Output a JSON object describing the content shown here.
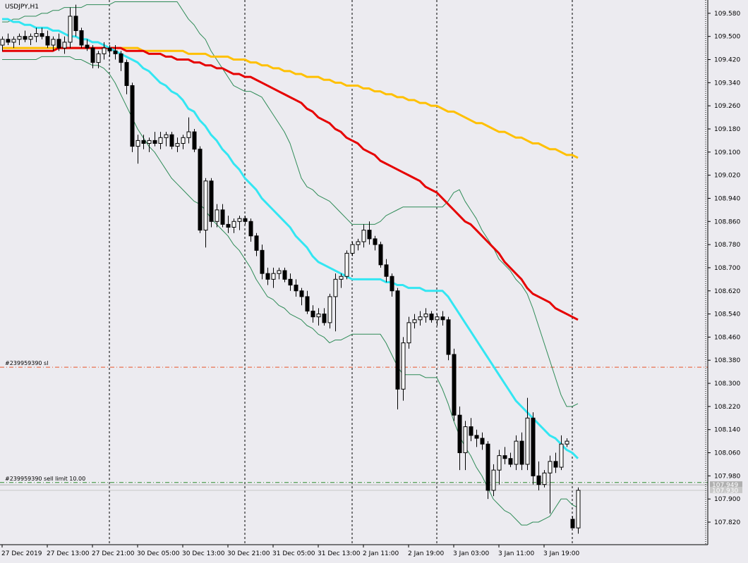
{
  "chart_data": {
    "type": "candlestick",
    "title": "USDJPY,H1",
    "background": "#ecebf0",
    "bull_color": "#ffffff",
    "bear_color": "#000000",
    "ylim": [
      107.742,
      109.626
    ],
    "yticks": [
      {
        "value": 109.58,
        "label": "109.580"
      },
      {
        "value": 109.5,
        "label": "109.500"
      },
      {
        "value": 109.42,
        "label": "109.420"
      },
      {
        "value": 109.34,
        "label": "109.340"
      },
      {
        "value": 109.26,
        "label": "109.260"
      },
      {
        "value": 109.18,
        "label": "109.180"
      },
      {
        "value": 109.1,
        "label": "109.100"
      },
      {
        "value": 109.02,
        "label": "109.020"
      },
      {
        "value": 108.94,
        "label": "108.940"
      },
      {
        "value": 108.86,
        "label": "108.860"
      },
      {
        "value": 108.78,
        "label": "108.780"
      },
      {
        "value": 108.7,
        "label": "108.700"
      },
      {
        "value": 108.62,
        "label": "108.620"
      },
      {
        "value": 108.54,
        "label": "108.540"
      },
      {
        "value": 108.46,
        "label": "108.460"
      },
      {
        "value": 108.38,
        "label": "108.380"
      },
      {
        "value": 108.3,
        "label": "108.300"
      },
      {
        "value": 108.22,
        "label": "108.220"
      },
      {
        "value": 108.14,
        "label": "108.140"
      },
      {
        "value": 108.06,
        "label": "108.060"
      },
      {
        "value": 107.98,
        "label": "107.980"
      },
      {
        "value": 107.9,
        "label": "107.900"
      },
      {
        "value": 107.82,
        "label": "107.820"
      }
    ],
    "categories": [
      "27 Dec 2019",
      null,
      null,
      null,
      null,
      null,
      null,
      null,
      "27 Dec 13:00",
      null,
      null,
      null,
      null,
      null,
      null,
      null,
      "27 Dec 21:00",
      null,
      null,
      null,
      null,
      null,
      null,
      null,
      "30 Dec 05:00",
      null,
      null,
      null,
      null,
      null,
      null,
      null,
      "30 Dec 13:00",
      null,
      null,
      null,
      null,
      null,
      null,
      null,
      "30 Dec 21:00",
      null,
      null,
      null,
      null,
      null,
      null,
      null,
      "31 Dec 05:00",
      null,
      null,
      null,
      null,
      null,
      null,
      null,
      "31 Dec 13:00",
      null,
      null,
      null,
      null,
      null,
      null,
      null,
      "2 Jan 11:00",
      null,
      null,
      null,
      null,
      null,
      null,
      null,
      "2 Jan 19:00",
      null,
      null,
      null,
      null,
      null,
      null,
      null,
      "3 Jan 03:00",
      null,
      null,
      null,
      null,
      null,
      null,
      null,
      "3 Jan 11:00",
      null,
      null,
      null,
      null,
      null,
      null,
      null,
      "3 Jan 19:00",
      null,
      null,
      null,
      null,
      null,
      null
    ],
    "open": [
      109.47,
      109.49,
      109.48,
      109.49,
      109.5,
      109.49,
      109.5,
      109.51,
      109.5,
      109.47,
      109.49,
      109.46,
      109.48,
      109.57,
      109.52,
      109.47,
      109.46,
      109.41,
      109.44,
      109.46,
      109.45,
      109.44,
      109.41,
      109.33,
      109.12,
      109.14,
      109.13,
      109.14,
      109.13,
      109.15,
      109.16,
      109.12,
      109.13,
      109.15,
      109.17,
      109.11,
      108.83,
      109.0,
      108.86,
      108.9,
      108.85,
      108.84,
      108.86,
      108.87,
      108.86,
      108.81,
      108.76,
      108.68,
      108.66,
      108.68,
      108.69,
      108.66,
      108.64,
      108.62,
      108.6,
      108.55,
      108.53,
      108.54,
      108.51,
      108.6,
      108.66,
      108.67,
      108.75,
      108.78,
      108.79,
      108.83,
      108.8,
      108.78,
      108.71,
      108.67,
      108.62,
      108.28,
      108.44,
      108.51,
      108.52,
      108.53,
      108.54,
      108.52,
      108.53,
      108.52,
      108.4,
      108.19,
      108.06,
      108.15,
      108.12,
      108.11,
      108.09,
      107.93,
      108.0,
      108.05,
      108.04,
      108.02,
      108.1,
      108.02,
      108.18,
      107.98,
      107.95,
      107.99,
      108.03,
      108.01,
      108.09,
      107.83,
      107.8
    ],
    "high": [
      109.5,
      109.51,
      109.5,
      109.51,
      109.52,
      109.51,
      109.53,
      109.53,
      109.52,
      109.5,
      109.51,
      109.5,
      109.6,
      109.61,
      109.53,
      109.49,
      109.47,
      109.45,
      109.48,
      109.47,
      109.47,
      109.45,
      109.42,
      109.34,
      109.16,
      109.16,
      109.15,
      109.17,
      109.17,
      109.17,
      109.17,
      109.15,
      109.16,
      109.22,
      109.18,
      109.12,
      109.01,
      109.01,
      108.92,
      108.92,
      108.88,
      108.87,
      108.88,
      108.88,
      108.87,
      108.82,
      108.78,
      108.7,
      108.7,
      108.7,
      108.7,
      108.68,
      108.66,
      108.63,
      108.62,
      108.57,
      108.56,
      108.56,
      108.61,
      108.68,
      108.68,
      108.76,
      108.79,
      108.8,
      108.85,
      108.86,
      108.81,
      108.79,
      108.73,
      108.68,
      108.63,
      108.46,
      108.53,
      108.54,
      108.55,
      108.56,
      108.55,
      108.54,
      108.55,
      108.53,
      108.42,
      108.22,
      108.17,
      108.18,
      108.14,
      108.13,
      108.1,
      108.02,
      108.07,
      108.08,
      108.06,
      108.12,
      108.13,
      108.25,
      108.2,
      108.03,
      108.0,
      108.05,
      108.06,
      108.12,
      108.11,
      107.84,
      107.94
    ],
    "low": [
      109.45,
      109.47,
      109.46,
      109.47,
      109.48,
      109.47,
      109.48,
      109.49,
      109.46,
      109.45,
      109.45,
      109.44,
      109.46,
      109.5,
      109.46,
      109.45,
      109.39,
      109.39,
      109.42,
      109.43,
      109.42,
      109.38,
      109.3,
      109.1,
      109.06,
      109.11,
      109.1,
      109.12,
      109.11,
      109.12,
      109.11,
      109.1,
      109.11,
      109.13,
      109.1,
      108.82,
      108.77,
      108.84,
      108.84,
      108.84,
      108.82,
      108.82,
      108.83,
      108.85,
      108.79,
      108.74,
      108.66,
      108.64,
      108.63,
      108.66,
      108.65,
      108.62,
      108.6,
      108.57,
      108.54,
      108.51,
      108.5,
      108.5,
      108.49,
      108.48,
      108.63,
      108.66,
      108.74,
      108.76,
      108.77,
      108.78,
      108.76,
      108.7,
      108.65,
      108.6,
      108.21,
      108.24,
      108.42,
      108.49,
      108.5,
      108.51,
      108.51,
      108.5,
      108.5,
      108.38,
      108.17,
      108.0,
      108.0,
      108.1,
      108.08,
      108.07,
      107.9,
      107.91,
      107.95,
      108.02,
      108.01,
      108.0,
      108.0,
      108.0,
      107.95,
      107.93,
      107.94,
      107.85,
      107.99,
      108.0,
      108.08,
      107.8,
      107.78
    ],
    "close": [
      109.49,
      109.48,
      109.49,
      109.5,
      109.49,
      109.5,
      109.51,
      109.5,
      109.47,
      109.49,
      109.46,
      109.48,
      109.57,
      109.52,
      109.47,
      109.46,
      109.41,
      109.44,
      109.46,
      109.45,
      109.44,
      109.41,
      109.33,
      109.12,
      109.14,
      109.13,
      109.14,
      109.13,
      109.15,
      109.16,
      109.12,
      109.13,
      109.15,
      109.17,
      109.11,
      108.83,
      109.0,
      108.86,
      108.9,
      108.85,
      108.84,
      108.86,
      108.87,
      108.86,
      108.81,
      108.76,
      108.68,
      108.66,
      108.68,
      108.69,
      108.66,
      108.64,
      108.62,
      108.6,
      108.55,
      108.53,
      108.54,
      108.51,
      108.6,
      108.66,
      108.67,
      108.75,
      108.78,
      108.79,
      108.83,
      108.8,
      108.78,
      108.71,
      108.67,
      108.62,
      108.28,
      108.44,
      108.51,
      108.52,
      108.53,
      108.54,
      108.52,
      108.53,
      108.52,
      108.4,
      108.19,
      108.06,
      108.15,
      108.12,
      108.11,
      108.09,
      107.93,
      108.0,
      108.05,
      108.04,
      108.02,
      108.1,
      108.02,
      108.18,
      107.98,
      107.95,
      107.99,
      108.03,
      108.01,
      108.09,
      108.1,
      107.8,
      107.93
    ],
    "series": [
      {
        "color": "#2e8b57",
        "line_width": 1,
        "values": [
          109.55,
          109.55,
          109.56,
          109.56,
          109.57,
          109.57,
          109.57,
          109.58,
          109.58,
          109.59,
          109.59,
          109.6,
          109.6,
          109.6,
          109.6,
          109.61,
          109.61,
          109.61,
          109.61,
          109.61,
          109.62,
          109.62,
          109.62,
          109.62,
          109.62,
          109.62,
          109.62,
          109.62,
          109.62,
          109.62,
          109.62,
          109.62,
          109.59,
          109.56,
          109.54,
          109.51,
          109.49,
          109.45,
          109.42,
          109.39,
          109.36,
          109.33,
          109.32,
          109.31,
          109.31,
          109.3,
          109.29,
          109.26,
          109.23,
          109.2,
          109.17,
          109.13,
          109.07,
          109.01,
          108.98,
          108.97,
          108.95,
          108.94,
          108.93,
          108.91,
          108.89,
          108.87,
          108.85,
          108.85,
          108.85,
          108.85,
          108.85,
          108.86,
          108.88,
          108.89,
          108.9,
          108.91,
          108.91,
          108.91,
          108.91,
          108.91,
          108.91,
          108.91,
          108.91,
          108.93,
          108.96,
          108.97,
          108.93,
          108.9,
          108.87,
          108.83,
          108.8,
          108.77,
          108.73,
          108.71,
          108.69,
          108.66,
          108.64,
          108.61,
          108.56,
          108.5,
          108.44,
          108.38,
          108.32,
          108.26,
          108.22,
          108.22,
          108.23
        ]
      },
      {
        "color": "#2e8b57",
        "line_width": 1,
        "values": [
          109.42,
          109.42,
          109.42,
          109.42,
          109.42,
          109.42,
          109.42,
          109.43,
          109.43,
          109.43,
          109.43,
          109.43,
          109.43,
          109.42,
          109.42,
          109.41,
          109.4,
          109.4,
          109.39,
          109.37,
          109.34,
          109.3,
          109.26,
          109.22,
          109.18,
          109.15,
          109.12,
          109.1,
          109.07,
          109.04,
          109.01,
          108.99,
          108.97,
          108.95,
          108.93,
          108.92,
          108.9,
          108.87,
          108.85,
          108.83,
          108.81,
          108.78,
          108.76,
          108.73,
          108.7,
          108.66,
          108.63,
          108.6,
          108.59,
          108.57,
          108.56,
          108.54,
          108.53,
          108.52,
          108.5,
          108.49,
          108.47,
          108.46,
          108.44,
          108.45,
          108.45,
          108.46,
          108.47,
          108.47,
          108.47,
          108.47,
          108.47,
          108.47,
          108.44,
          108.4,
          108.36,
          108.33,
          108.33,
          108.33,
          108.33,
          108.32,
          108.32,
          108.32,
          108.28,
          108.23,
          108.17,
          108.12,
          108.08,
          108.05,
          108.01,
          107.98,
          107.94,
          107.9,
          107.88,
          107.86,
          107.85,
          107.83,
          107.81,
          107.81,
          107.82,
          107.82,
          107.83,
          107.84,
          107.87,
          107.9,
          107.9,
          107.88,
          107.87
        ]
      },
      {
        "color": "#ffc000",
        "line_width": 3,
        "values": [
          109.46,
          109.46,
          109.46,
          109.46,
          109.46,
          109.46,
          109.46,
          109.46,
          109.46,
          109.46,
          109.46,
          109.46,
          109.46,
          109.46,
          109.46,
          109.46,
          109.46,
          109.46,
          109.46,
          109.46,
          109.46,
          109.46,
          109.46,
          109.46,
          109.46,
          109.45,
          109.45,
          109.45,
          109.45,
          109.45,
          109.45,
          109.45,
          109.45,
          109.44,
          109.44,
          109.44,
          109.44,
          109.43,
          109.43,
          109.43,
          109.43,
          109.42,
          109.42,
          109.42,
          109.41,
          109.41,
          109.4,
          109.4,
          109.39,
          109.39,
          109.38,
          109.38,
          109.37,
          109.37,
          109.36,
          109.36,
          109.36,
          109.35,
          109.35,
          109.34,
          109.34,
          109.33,
          109.33,
          109.33,
          109.32,
          109.32,
          109.31,
          109.31,
          109.3,
          109.3,
          109.29,
          109.29,
          109.28,
          109.28,
          109.27,
          109.27,
          109.26,
          109.26,
          109.25,
          109.24,
          109.24,
          109.23,
          109.22,
          109.21,
          109.2,
          109.2,
          109.19,
          109.18,
          109.17,
          109.17,
          109.16,
          109.15,
          109.15,
          109.14,
          109.13,
          109.13,
          109.12,
          109.11,
          109.11,
          109.1,
          109.09,
          109.09,
          109.08
        ]
      },
      {
        "color": "#e60000",
        "line_width": 3,
        "values": [
          109.45,
          109.45,
          109.45,
          109.45,
          109.45,
          109.45,
          109.45,
          109.45,
          109.45,
          109.45,
          109.46,
          109.46,
          109.46,
          109.46,
          109.46,
          109.46,
          109.46,
          109.46,
          109.46,
          109.46,
          109.46,
          109.46,
          109.45,
          109.45,
          109.45,
          109.45,
          109.44,
          109.44,
          109.44,
          109.43,
          109.43,
          109.42,
          109.42,
          109.42,
          109.41,
          109.41,
          109.4,
          109.4,
          109.39,
          109.39,
          109.38,
          109.37,
          109.37,
          109.36,
          109.36,
          109.35,
          109.34,
          109.33,
          109.32,
          109.31,
          109.3,
          109.29,
          109.28,
          109.27,
          109.25,
          109.24,
          109.22,
          109.21,
          109.2,
          109.18,
          109.17,
          109.15,
          109.14,
          109.13,
          109.11,
          109.1,
          109.09,
          109.07,
          109.06,
          109.05,
          109.04,
          109.03,
          109.02,
          109.01,
          109.0,
          108.98,
          108.97,
          108.96,
          108.94,
          108.92,
          108.9,
          108.88,
          108.86,
          108.85,
          108.83,
          108.81,
          108.79,
          108.77,
          108.75,
          108.72,
          108.7,
          108.68,
          108.66,
          108.63,
          108.61,
          108.6,
          108.59,
          108.58,
          108.56,
          108.55,
          108.54,
          108.53,
          108.52
        ]
      },
      {
        "color": "#33e6f2",
        "line_width": 3,
        "values": [
          109.56,
          109.56,
          109.55,
          109.55,
          109.54,
          109.54,
          109.53,
          109.53,
          109.53,
          109.52,
          109.52,
          109.51,
          109.5,
          109.5,
          109.49,
          109.49,
          109.48,
          109.48,
          109.47,
          109.46,
          109.45,
          109.44,
          109.43,
          109.42,
          109.41,
          109.39,
          109.38,
          109.36,
          109.34,
          109.33,
          109.31,
          109.3,
          109.28,
          109.25,
          109.24,
          109.21,
          109.19,
          109.16,
          109.14,
          109.11,
          109.09,
          109.06,
          109.04,
          109.01,
          108.99,
          108.97,
          108.94,
          108.92,
          108.9,
          108.88,
          108.86,
          108.84,
          108.81,
          108.79,
          108.77,
          108.74,
          108.72,
          108.71,
          108.7,
          108.69,
          108.68,
          108.67,
          108.66,
          108.66,
          108.66,
          108.66,
          108.66,
          108.66,
          108.65,
          108.65,
          108.64,
          108.64,
          108.63,
          108.63,
          108.63,
          108.62,
          108.62,
          108.62,
          108.62,
          108.6,
          108.57,
          108.54,
          108.51,
          108.48,
          108.45,
          108.42,
          108.39,
          108.36,
          108.33,
          108.3,
          108.27,
          108.24,
          108.22,
          108.2,
          108.18,
          108.16,
          108.14,
          108.12,
          108.11,
          108.09,
          108.07,
          108.06,
          108.04
        ]
      }
    ],
    "annotations": [
      {
        "text": "#239959390 sl",
        "value": 108.356,
        "color": "#e8552a"
      },
      {
        "text": "#239959390 sell limit 10.00",
        "value": 107.957,
        "color": "#2e8b2e"
      }
    ],
    "price_labels": [
      {
        "value": 107.949,
        "label": "107.949",
        "color": "#b0b0b0"
      },
      {
        "value": 107.93,
        "label": "107.930",
        "color": "#c8c8c8"
      }
    ]
  }
}
